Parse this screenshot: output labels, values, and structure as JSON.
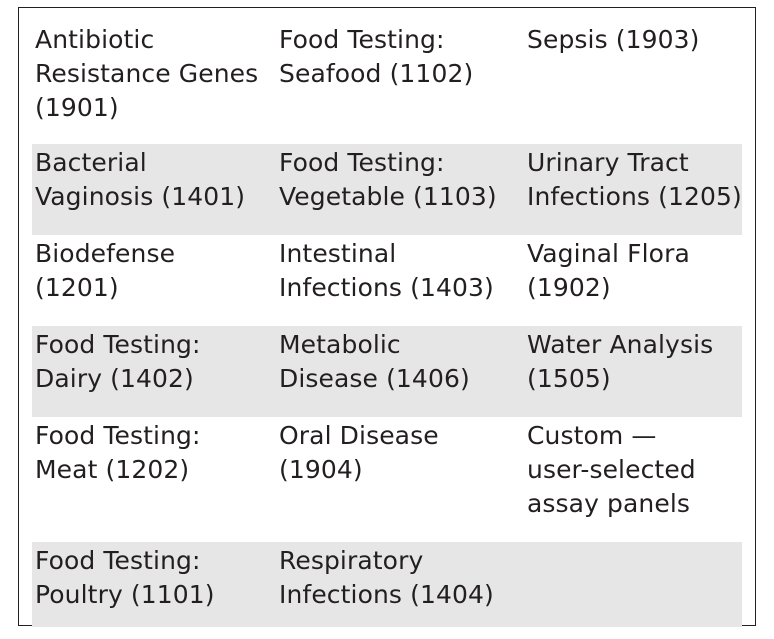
{
  "table": {
    "rows": [
      [
        "Antibiotic\nResistance Genes\n(1901)",
        "Food Testing:\nSeafood (1102)",
        "Sepsis (1903)"
      ],
      [
        "Bacterial\nVaginosis (1401)",
        "Food Testing:\nVegetable (1103)",
        "Urinary Tract\nInfections (1205)"
      ],
      [
        "Biodefense\n(1201)",
        "Intestinal\nInfections (1403)",
        "Vaginal Flora\n(1902)"
      ],
      [
        "Food Testing:\nDairy (1402)",
        "Metabolic\nDisease (1406)",
        "Water Analysis\n(1505)"
      ],
      [
        "Food Testing:\nMeat (1202)",
        "Oral Disease\n(1904)",
        "Custom —\nuser-selected\nassay panels"
      ],
      [
        "Food Testing:\nPoultry (1101)",
        "Respiratory\nInfections (1404)",
        ""
      ]
    ],
    "shaded_rows": [
      1,
      3,
      5
    ],
    "shade_color": "#e6e6e7"
  }
}
